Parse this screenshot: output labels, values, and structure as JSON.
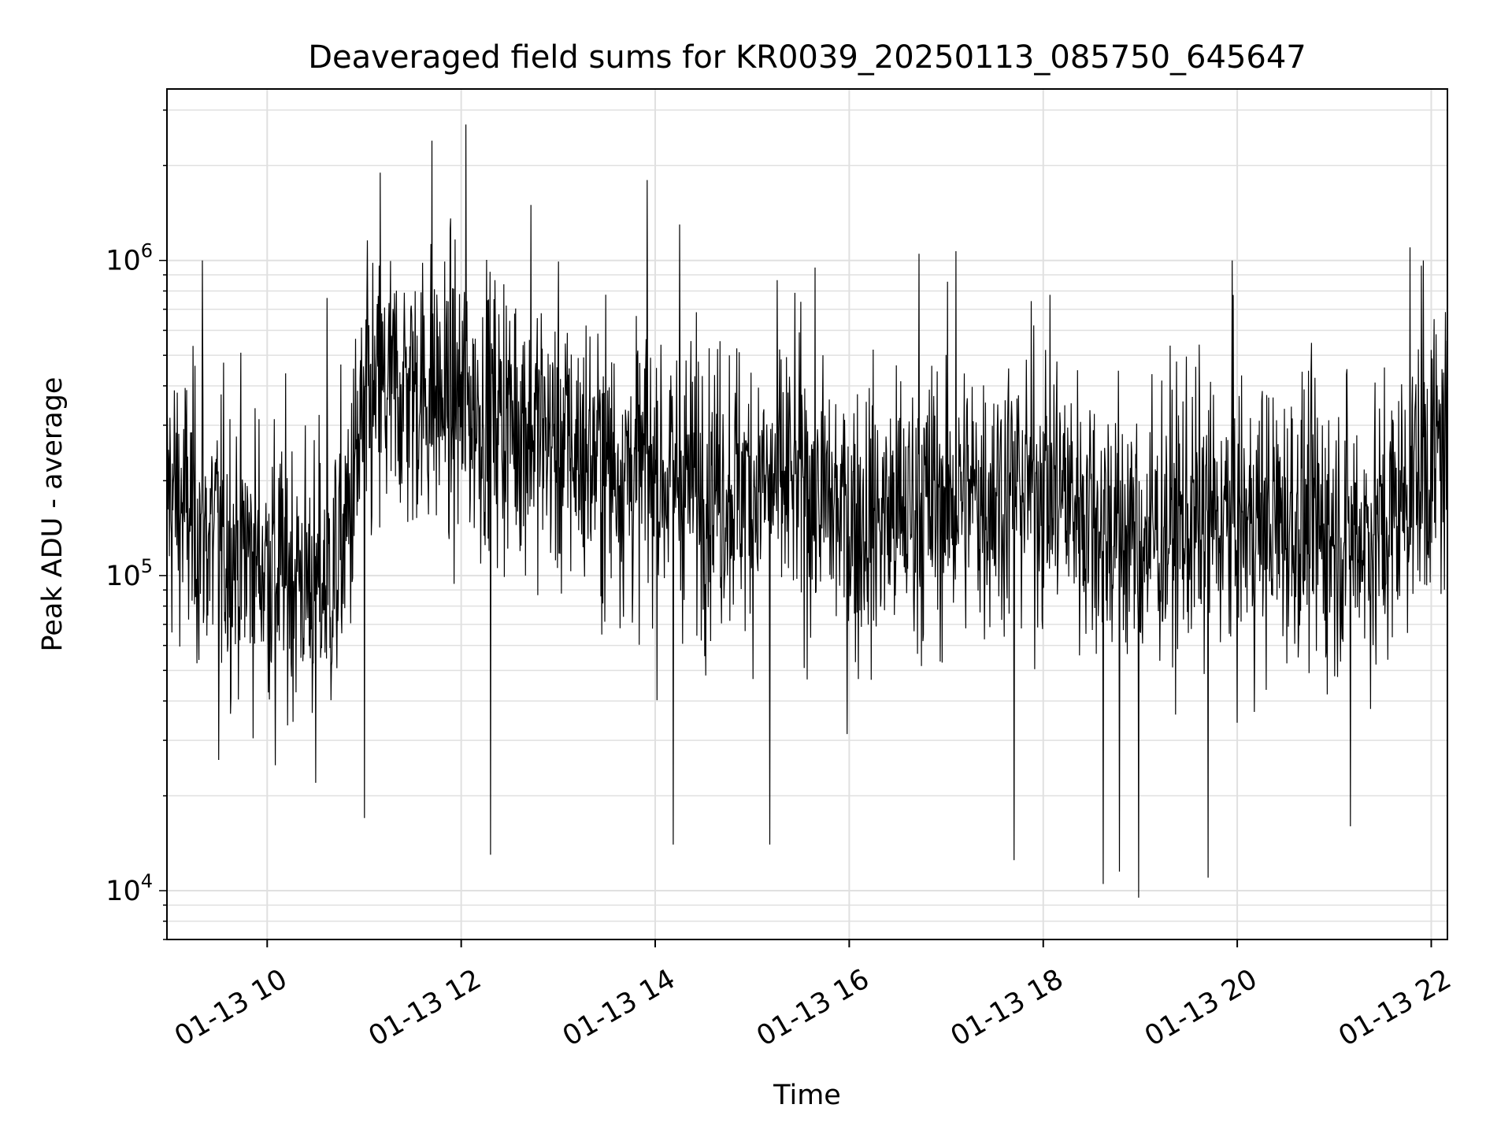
{
  "chart_data": {
    "type": "line",
    "title": "Deaveraged field sums for KR0039_20250113_085750_645647",
    "xlabel": "Time",
    "ylabel": "Peak ADU - average",
    "yscale": "log",
    "ylim": [
      7000,
      3500000
    ],
    "xlim": [
      "2025-01-13 08:58",
      "2025-01-13 22:10"
    ],
    "grid": true,
    "line_color": "#000000",
    "grid_color": "#e0e0e0",
    "x_ticks": [
      {
        "t": "2025-01-13 10:00",
        "label": "01-13 10"
      },
      {
        "t": "2025-01-13 12:00",
        "label": "01-13 12"
      },
      {
        "t": "2025-01-13 14:00",
        "label": "01-13 14"
      },
      {
        "t": "2025-01-13 16:00",
        "label": "01-13 16"
      },
      {
        "t": "2025-01-13 18:00",
        "label": "01-13 18"
      },
      {
        "t": "2025-01-13 20:00",
        "label": "01-13 20"
      },
      {
        "t": "2025-01-13 22:00",
        "label": "01-13 22"
      }
    ],
    "y_ticks": [
      {
        "value": 10000,
        "base": "10",
        "exp": "4"
      },
      {
        "value": 100000,
        "base": "10",
        "exp": "5"
      },
      {
        "value": 1000000,
        "base": "10",
        "exp": "6"
      }
    ],
    "series": [
      {
        "x": [
          "2025-01-13 08:58",
          "2025-01-13 09:10",
          "2025-01-13 09:20",
          "2025-01-13 09:30",
          "2025-01-13 09:45",
          "2025-01-13 10:00",
          "2025-01-13 10:20",
          "2025-01-13 10:40",
          "2025-01-13 10:50",
          "2025-01-13 11:00",
          "2025-01-13 11:15",
          "2025-01-13 11:30",
          "2025-01-13 11:45",
          "2025-01-13 12:00",
          "2025-01-13 12:15",
          "2025-01-13 12:30",
          "2025-01-13 12:45",
          "2025-01-13 13:00",
          "2025-01-13 13:20",
          "2025-01-13 13:40",
          "2025-01-13 14:00",
          "2025-01-13 14:30",
          "2025-01-13 15:00",
          "2025-01-13 15:30",
          "2025-01-13 16:00",
          "2025-01-13 16:30",
          "2025-01-13 17:00",
          "2025-01-13 17:30",
          "2025-01-13 18:00",
          "2025-01-13 18:30",
          "2025-01-13 19:00",
          "2025-01-13 19:30",
          "2025-01-13 20:00",
          "2025-01-13 20:30",
          "2025-01-13 21:00",
          "2025-01-13 21:30",
          "2025-01-13 21:50",
          "2025-01-13 22:10"
        ],
        "values": [
          190000,
          160000,
          140000,
          130000,
          120000,
          110000,
          100000,
          95000,
          150000,
          320000,
          380000,
          400000,
          370000,
          350000,
          330000,
          320000,
          300000,
          260000,
          240000,
          220000,
          210000,
          200000,
          190000,
          200000,
          150000,
          155000,
          175000,
          185000,
          200000,
          160000,
          130000,
          150000,
          145000,
          150000,
          140000,
          135000,
          210000,
          260000
        ],
        "spikes": [
          {
            "t": "2025-01-13 09:20",
            "v": 1000000
          },
          {
            "t": "2025-01-13 09:30",
            "v": 26000
          },
          {
            "t": "2025-01-13 10:05",
            "v": 25000
          },
          {
            "t": "2025-01-13 10:37",
            "v": 760000
          },
          {
            "t": "2025-01-13 10:30",
            "v": 22000
          },
          {
            "t": "2025-01-13 11:00",
            "v": 17000
          },
          {
            "t": "2025-01-13 11:10",
            "v": 1900000
          },
          {
            "t": "2025-01-13 11:42",
            "v": 2400000
          },
          {
            "t": "2025-01-13 12:03",
            "v": 2700000
          },
          {
            "t": "2025-01-13 12:18",
            "v": 13000
          },
          {
            "t": "2025-01-13 12:43",
            "v": 1500000
          },
          {
            "t": "2025-01-13 13:55",
            "v": 1800000
          },
          {
            "t": "2025-01-13 14:11",
            "v": 14000
          },
          {
            "t": "2025-01-13 14:15",
            "v": 1300000
          },
          {
            "t": "2025-01-13 15:11",
            "v": 14000
          },
          {
            "t": "2025-01-13 16:43",
            "v": 1050000
          },
          {
            "t": "2025-01-13 17:06",
            "v": 1070000
          },
          {
            "t": "2025-01-13 17:42",
            "v": 12500
          },
          {
            "t": "2025-01-13 18:37",
            "v": 10500
          },
          {
            "t": "2025-01-13 18:47",
            "v": 11500
          },
          {
            "t": "2025-01-13 18:59",
            "v": 9500
          },
          {
            "t": "2025-01-13 19:42",
            "v": 11000
          },
          {
            "t": "2025-01-13 19:57",
            "v": 1000000
          },
          {
            "t": "2025-01-13 21:47",
            "v": 1100000
          },
          {
            "t": "2025-01-13 21:55",
            "v": 1000000
          },
          {
            "t": "2025-01-13 21:10",
            "v": 16000
          }
        ]
      }
    ]
  }
}
